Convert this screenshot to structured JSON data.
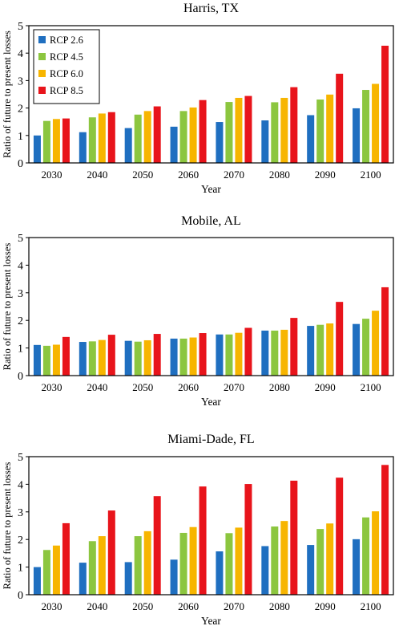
{
  "chart_data": [
    {
      "type": "bar",
      "title": "Harris, TX",
      "xlabel": "Year",
      "ylabel": "Ratio of future to present losses",
      "ylim": [
        0,
        5
      ],
      "yticks": [
        "0",
        "1",
        "2",
        "3",
        "4",
        "5"
      ],
      "categories": [
        "2030",
        "2040",
        "2050",
        "2060",
        "2070",
        "2080",
        "2090",
        "2100"
      ],
      "legend_position": "top-left",
      "series": [
        {
          "name": "RCP 2.6",
          "color": "#1f6fc0",
          "values": [
            1.0,
            1.12,
            1.27,
            1.32,
            1.49,
            1.55,
            1.74,
            1.99
          ]
        },
        {
          "name": "RCP 4.5",
          "color": "#8cc63f",
          "values": [
            1.53,
            1.66,
            1.76,
            1.89,
            2.22,
            2.21,
            2.31,
            2.66
          ]
        },
        {
          "name": "RCP 6.0",
          "color": "#f7b500",
          "values": [
            1.6,
            1.8,
            1.89,
            2.02,
            2.37,
            2.37,
            2.49,
            2.88
          ]
        },
        {
          "name": "RCP 8.5",
          "color": "#e8141b",
          "values": [
            1.62,
            1.85,
            2.06,
            2.29,
            2.44,
            2.76,
            3.25,
            4.27
          ]
        }
      ]
    },
    {
      "type": "bar",
      "title": "Mobile, AL",
      "xlabel": "Year",
      "ylabel": "Ratio of future to present losses",
      "ylim": [
        0,
        5
      ],
      "yticks": [
        "0",
        "1",
        "2",
        "3",
        "4",
        "5"
      ],
      "categories": [
        "2030",
        "2040",
        "2050",
        "2060",
        "2070",
        "2080",
        "2090",
        "2100"
      ],
      "series": [
        {
          "name": "RCP 2.6",
          "color": "#1f6fc0",
          "values": [
            1.11,
            1.22,
            1.26,
            1.34,
            1.49,
            1.63,
            1.8,
            1.87
          ]
        },
        {
          "name": "RCP 4.5",
          "color": "#8cc63f",
          "values": [
            1.08,
            1.24,
            1.23,
            1.34,
            1.49,
            1.63,
            1.84,
            2.06
          ]
        },
        {
          "name": "RCP 6.0",
          "color": "#f7b500",
          "values": [
            1.12,
            1.29,
            1.28,
            1.38,
            1.55,
            1.66,
            1.89,
            2.35
          ]
        },
        {
          "name": "RCP 8.5",
          "color": "#e8141b",
          "values": [
            1.4,
            1.48,
            1.51,
            1.54,
            1.73,
            2.09,
            2.67,
            3.2
          ]
        }
      ]
    },
    {
      "type": "bar",
      "title": "Miami-Dade, FL",
      "xlabel": "Year",
      "ylabel": "Ratio of future to present losses",
      "ylim": [
        0,
        5
      ],
      "yticks": [
        "0",
        "1",
        "2",
        "3",
        "4",
        "5"
      ],
      "categories": [
        "2030",
        "2040",
        "2050",
        "2060",
        "2070",
        "2080",
        "2090",
        "2100"
      ],
      "series": [
        {
          "name": "RCP 2.6",
          "color": "#1f6fc0",
          "values": [
            1.0,
            1.16,
            1.18,
            1.27,
            1.57,
            1.76,
            1.8,
            2.01
          ]
        },
        {
          "name": "RCP 4.5",
          "color": "#8cc63f",
          "values": [
            1.62,
            1.94,
            2.12,
            2.24,
            2.23,
            2.47,
            2.38,
            2.8
          ]
        },
        {
          "name": "RCP 6.0",
          "color": "#f7b500",
          "values": [
            1.78,
            2.12,
            2.3,
            2.45,
            2.43,
            2.67,
            2.58,
            3.02
          ]
        },
        {
          "name": "RCP 8.5",
          "color": "#e8141b",
          "values": [
            2.59,
            3.05,
            3.57,
            3.92,
            4.01,
            4.13,
            4.24,
            4.7
          ]
        }
      ]
    }
  ]
}
